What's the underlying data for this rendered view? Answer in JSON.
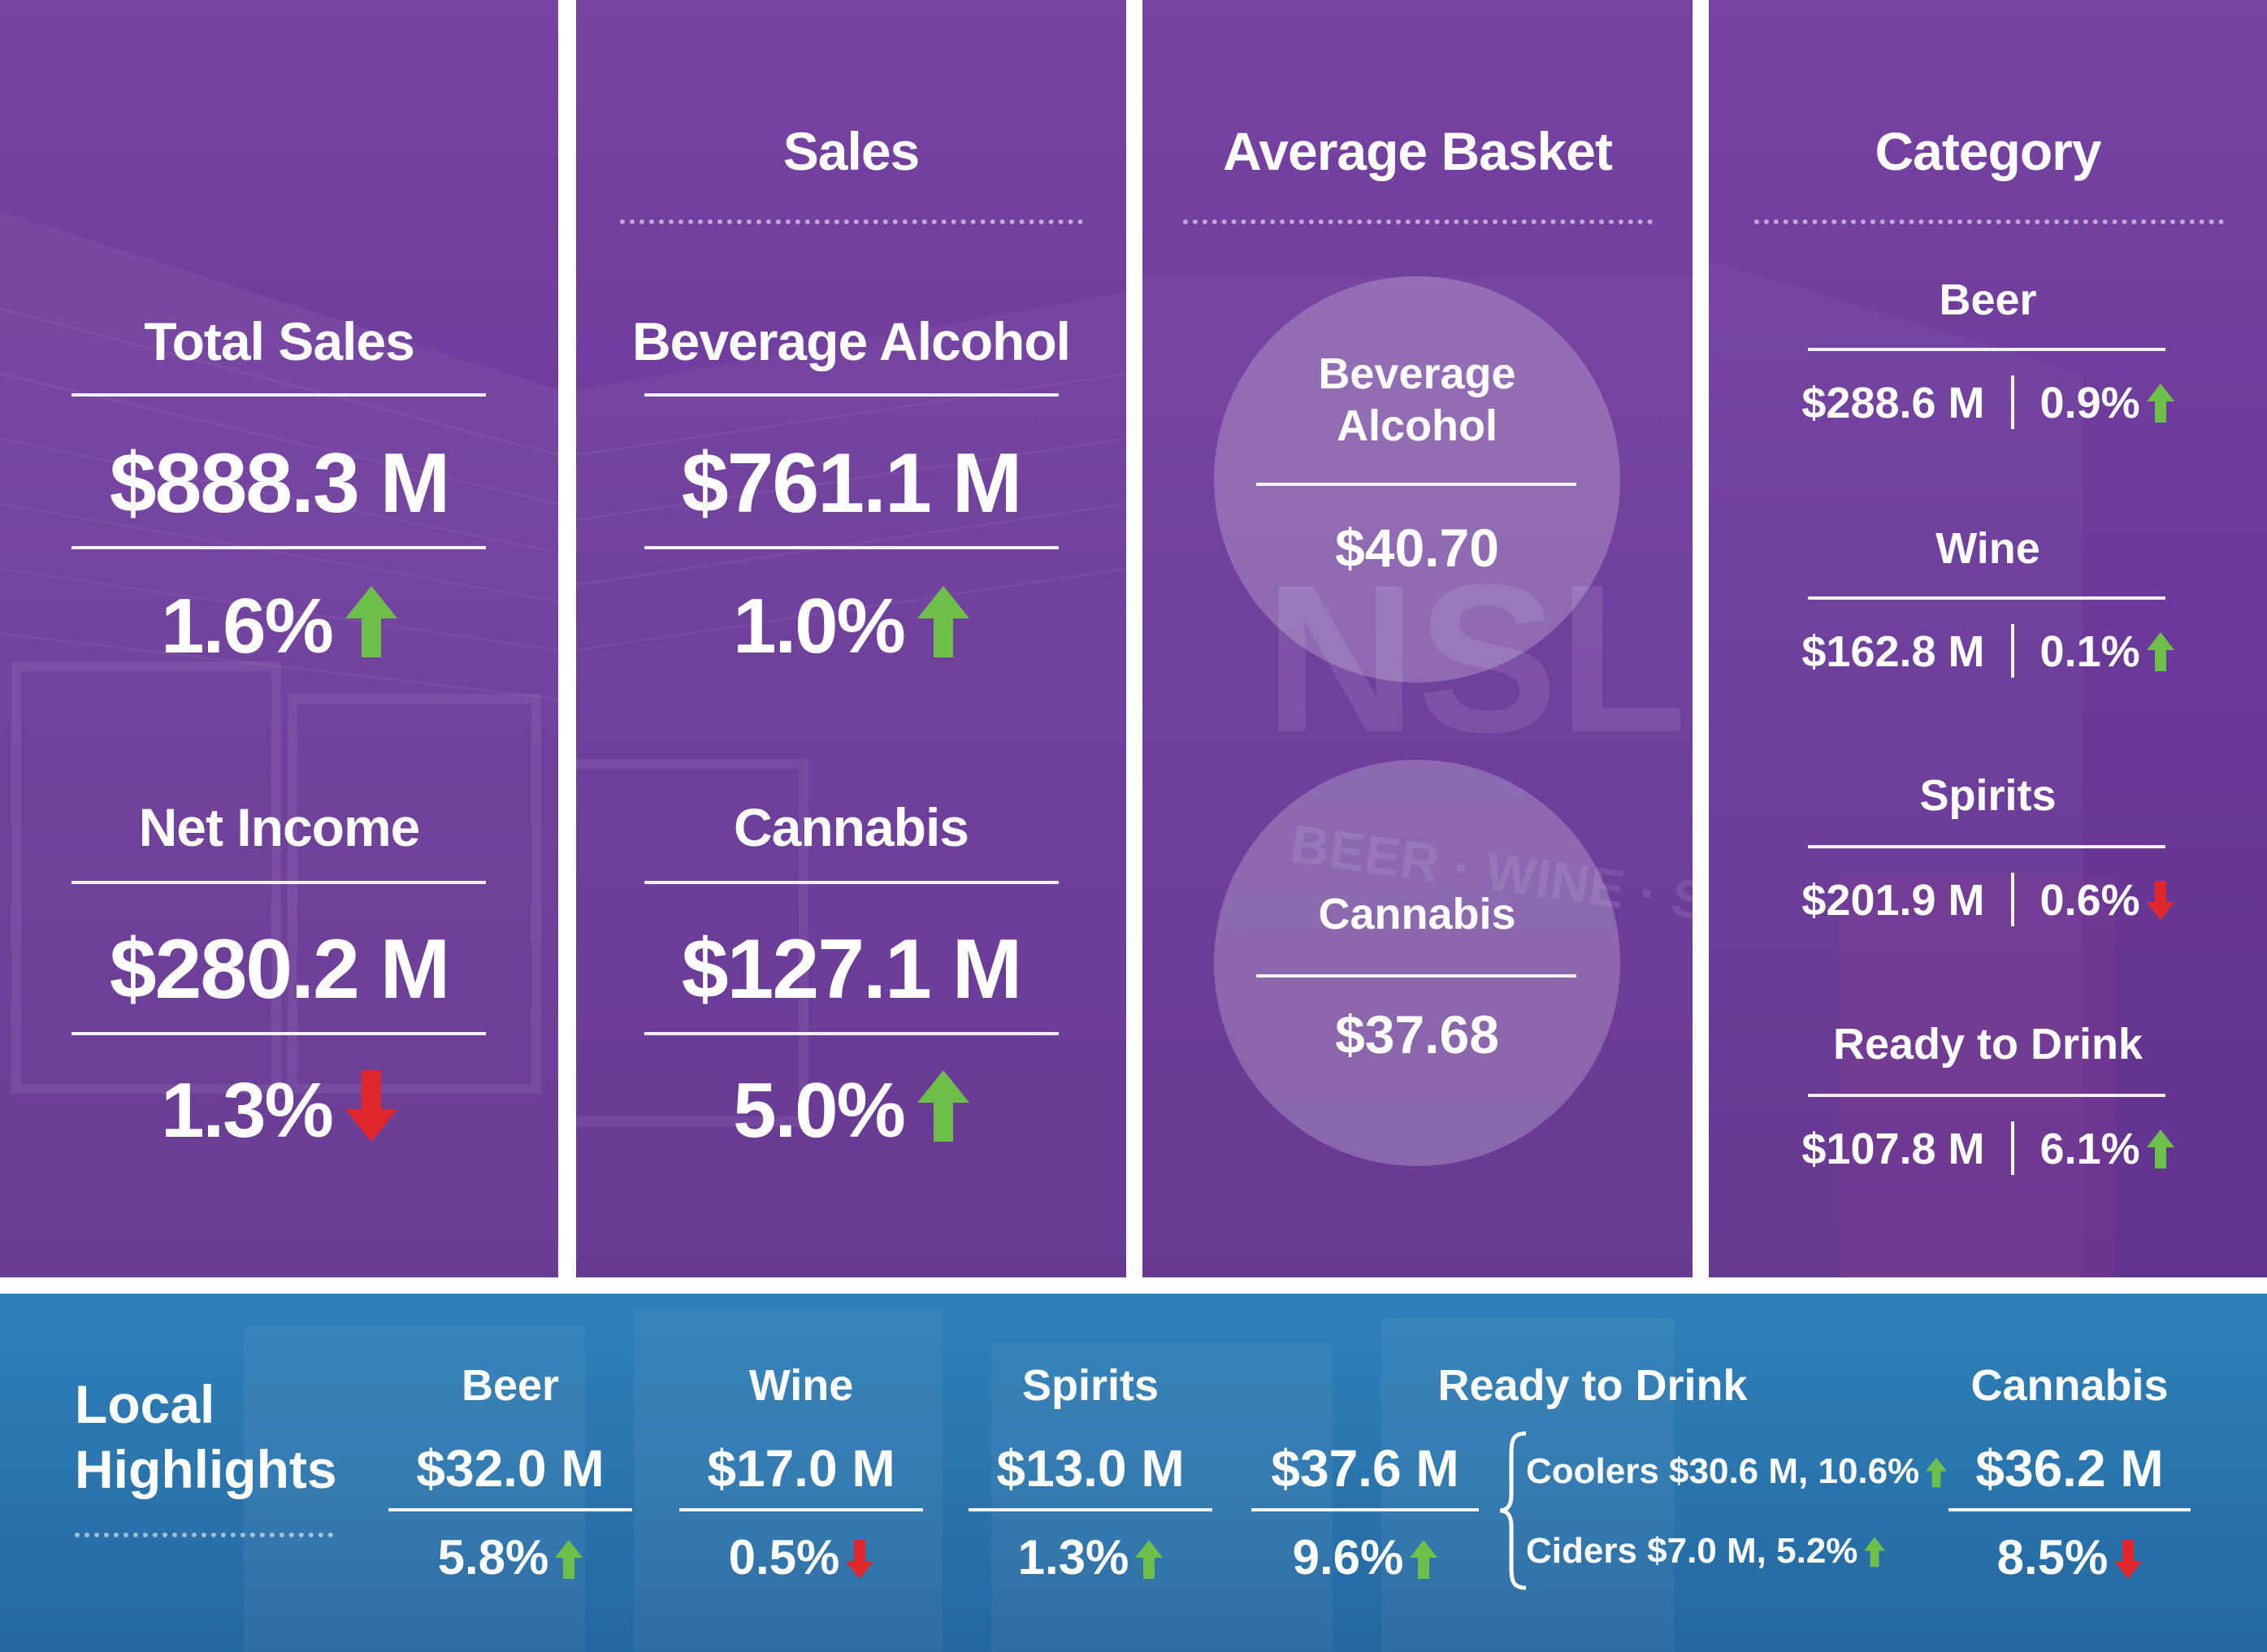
{
  "colors": {
    "panel_purple": "#6c3a9b",
    "bottom_blue": "#2a74ad",
    "arrow_up": "#6cc04a",
    "arrow_down": "#e0262b",
    "text": "#ffffff"
  },
  "col1": {
    "total_sales": {
      "label": "Total Sales",
      "value": "$888.3 M",
      "change": "1.6%",
      "direction": "up"
    },
    "net_income": {
      "label": "Net Income",
      "value": "$280.2 M",
      "change": "1.3%",
      "direction": "down"
    }
  },
  "col2": {
    "header": "Sales",
    "beverage_alcohol": {
      "label": "Beverage Alcohol",
      "value": "$761.1 M",
      "change": "1.0%",
      "direction": "up"
    },
    "cannabis": {
      "label": "Cannabis",
      "value": "$127.1 M",
      "change": "5.0%",
      "direction": "up"
    }
  },
  "col3": {
    "header": "Average Basket",
    "beverage_alcohol": {
      "label_line1": "Beverage",
      "label_line2": "Alcohol",
      "value": "$40.70"
    },
    "cannabis": {
      "label": "Cannabis",
      "value": "$37.68"
    }
  },
  "col4": {
    "header": "Category",
    "items": [
      {
        "name": "Beer",
        "value": "$288.6 M",
        "change": "0.9%",
        "direction": "up"
      },
      {
        "name": "Wine",
        "value": "$162.8 M",
        "change": "0.1%",
        "direction": "up"
      },
      {
        "name": "Spirits",
        "value": "$201.9 M",
        "change": "0.6%",
        "direction": "down"
      },
      {
        "name": "Ready to Drink",
        "value": "$107.8 M",
        "change": "6.1%",
        "direction": "up"
      }
    ]
  },
  "local": {
    "title_line1": "Local",
    "title_line2": "Highlights",
    "beer": {
      "name": "Beer",
      "value": "$32.0 M",
      "change": "5.8%",
      "direction": "up"
    },
    "wine": {
      "name": "Wine",
      "value": "$17.0 M",
      "change": "0.5%",
      "direction": "down"
    },
    "spirits": {
      "name": "Spirits",
      "value": "$13.0 M",
      "change": "1.3%",
      "direction": "up"
    },
    "rtd": {
      "name": "Ready to Drink",
      "value": "$37.6 M",
      "change": "9.6%",
      "direction": "up",
      "coolers": "Coolers $30.6 M, 10.6%",
      "coolers_direction": "up",
      "ciders": "Ciders $7.0 M, 5.2%",
      "ciders_direction": "up"
    },
    "cannabis": {
      "name": "Cannabis",
      "value": "$36.2 M",
      "change": "8.5%",
      "direction": "down"
    }
  },
  "background": {
    "sign_letters": "NSLC",
    "sign_tagline": "BEER · WINE · SPIRITS"
  }
}
